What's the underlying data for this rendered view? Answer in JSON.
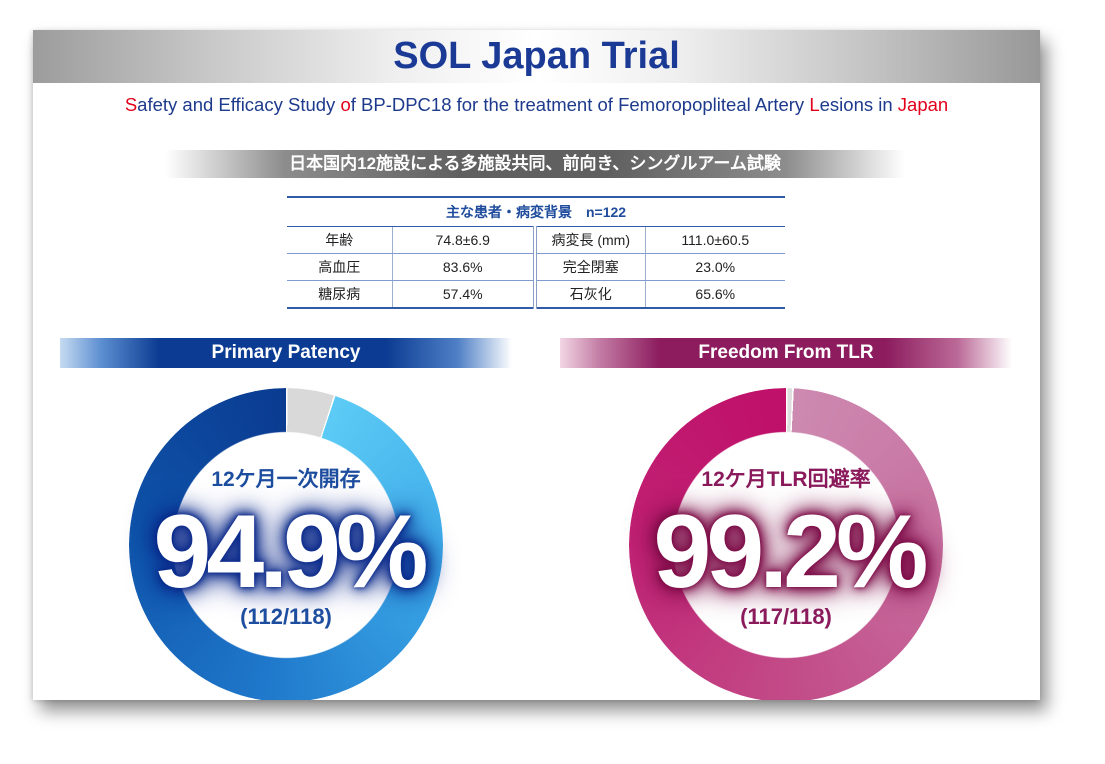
{
  "title": "SOL Japan Trial",
  "subtitle": {
    "parts": [
      {
        "text": "S",
        "highlight": true
      },
      {
        "text": "afety and Efficacy Study ",
        "highlight": false
      },
      {
        "text": "o",
        "highlight": true
      },
      {
        "text": "f BP-DPC18 for the treatment of Femoropopliteal Artery ",
        "highlight": false
      },
      {
        "text": "L",
        "highlight": true
      },
      {
        "text": "esions in ",
        "highlight": false
      },
      {
        "text": "Japan",
        "highlight": true
      }
    ]
  },
  "design_banner": "日本国内12施設による多施設共同、前向き、シングルアーム試験",
  "baseline_table": {
    "caption": "主な患者・病変背景　n=122",
    "rows": [
      [
        "年齢",
        "74.8±6.9",
        "病変長 (mm)",
        "111.0±60.5"
      ],
      [
        "高血圧",
        "83.6%",
        "完全閉塞",
        "23.0%"
      ],
      [
        "糖尿病",
        "57.4%",
        "石灰化",
        "65.6%"
      ]
    ]
  },
  "colors": {
    "title": "#1a3a95",
    "subtitle_text": "#1d3a8c",
    "subtitle_highlight": "#e3001b",
    "table_header": "#1f4c9c",
    "table_rule": "#2f5aa8",
    "table_rule_light": "#7f9bd0"
  },
  "chart_data": [
    {
      "type": "pie",
      "title": "Primary Patency",
      "label": "12ケ月一次開存",
      "value": 94.9,
      "value_label": "94.9%",
      "count_label": "(112/118)",
      "colors": {
        "value_gradient": [
          "#5ccbf5",
          "#3aa6e6",
          "#1f78cb",
          "#0f54aa",
          "#0a3b91"
        ],
        "remainder": "#d9d9d9",
        "banner": "#0b3b92",
        "label": "#1d4d9e",
        "glow": "#0b2a8a"
      }
    },
    {
      "type": "pie",
      "title": "Freedom From TLR",
      "label": "12ケ月TLR回避率",
      "value": 99.2,
      "value_label": "99.2%",
      "count_label": "(117/118)",
      "colors": {
        "value_gradient": [
          "#cd8ab1",
          "#c76f9f",
          "#c24a87",
          "#c12274",
          "#bf0f69"
        ],
        "remainder": "#dedede",
        "banner": "#8c1c5e",
        "label": "#8a1a5c",
        "glow": "#7d0d48"
      }
    }
  ]
}
